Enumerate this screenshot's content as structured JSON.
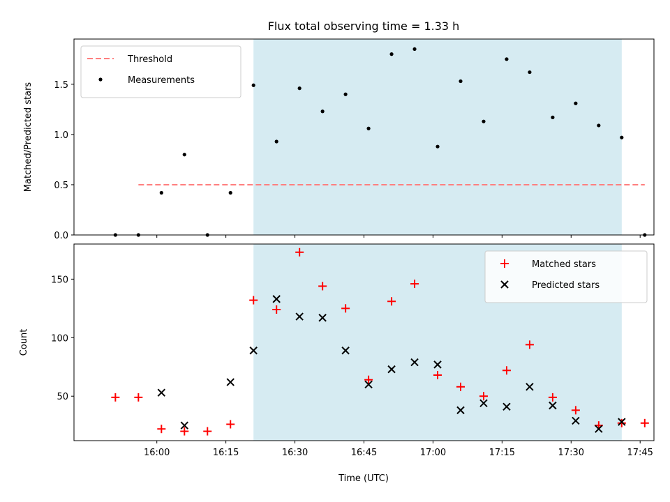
{
  "chart_data": {
    "title": "Flux total observing time = 1.33 h",
    "xlabel": "Time (UTC)",
    "x_unit": "time of day (UTC)",
    "xlim": [
      "15:42",
      "17:48"
    ],
    "xticks": [
      "16:00",
      "16:15",
      "16:30",
      "16:45",
      "17:00",
      "17:15",
      "17:30",
      "17:45"
    ],
    "shaded_interval": {
      "start": "16:21",
      "end": "17:41",
      "color": "#add8e6"
    },
    "panels": [
      {
        "type": "scatter",
        "ylabel": "Matched/Predicted stars",
        "ylim": [
          0,
          1.95
        ],
        "yticks": [
          "0.0",
          "0.5",
          "1.0",
          "1.5"
        ],
        "legend_position": "top-left",
        "threshold": {
          "name": "Threshold",
          "value": 0.5,
          "x_start": "15:56",
          "x_end": "17:46",
          "color": "#ff7f7f"
        },
        "series": [
          {
            "name": "Measurements",
            "color": "#000000",
            "marker": "dot",
            "x": [
              "15:56",
              "15:51",
              "16:01",
              "16:06",
              "16:11",
              "16:16",
              "16:21",
              "16:26",
              "16:31",
              "16:36",
              "16:41",
              "16:46",
              "16:51",
              "16:56",
              "17:01",
              "17:06",
              "17:11",
              "17:16",
              "17:21",
              "17:26",
              "17:31",
              "17:36",
              "17:41",
              "17:46"
            ],
            "y": [
              0.0,
              0.0,
              0.42,
              0.8,
              0.0,
              0.42,
              1.49,
              0.93,
              1.46,
              1.23,
              1.4,
              1.06,
              1.8,
              1.85,
              0.88,
              1.53,
              1.13,
              1.75,
              1.62,
              1.17,
              1.31,
              1.09,
              0.97,
              0.0
            ]
          }
        ]
      },
      {
        "type": "scatter",
        "ylabel": "Count",
        "ylim": [
          12,
          180
        ],
        "yticks": [
          "50",
          "100",
          "150"
        ],
        "legend_position": "top-right",
        "series": [
          {
            "name": "Matched stars",
            "color": "#ff0000",
            "marker": "plus",
            "x": [
              "15:51",
              "15:56",
              "16:01",
              "16:06",
              "16:11",
              "16:16",
              "16:21",
              "16:26",
              "16:31",
              "16:36",
              "16:41",
              "16:46",
              "16:51",
              "16:56",
              "17:01",
              "17:06",
              "17:11",
              "17:16",
              "17:21",
              "17:26",
              "17:31",
              "17:36",
              "17:41",
              "17:46"
            ],
            "y": [
              49,
              49,
              22,
              20,
              20,
              26,
              132,
              124,
              173,
              144,
              125,
              64,
              131,
              146,
              68,
              58,
              50,
              72,
              94,
              49,
              38,
              25,
              27,
              27
            ]
          },
          {
            "name": "Predicted stars",
            "color": "#000000",
            "marker": "x",
            "x": [
              "16:01",
              "16:06",
              "16:16",
              "16:21",
              "16:26",
              "16:31",
              "16:36",
              "16:41",
              "16:46",
              "16:51",
              "16:56",
              "17:01",
              "17:06",
              "17:11",
              "17:16",
              "17:21",
              "17:26",
              "17:31",
              "17:36",
              "17:41"
            ],
            "y": [
              53,
              25,
              62,
              89,
              133,
              118,
              117,
              89,
              60,
              73,
              79,
              77,
              38,
              44,
              41,
              58,
              42,
              29,
              22,
              28
            ]
          }
        ]
      }
    ]
  }
}
